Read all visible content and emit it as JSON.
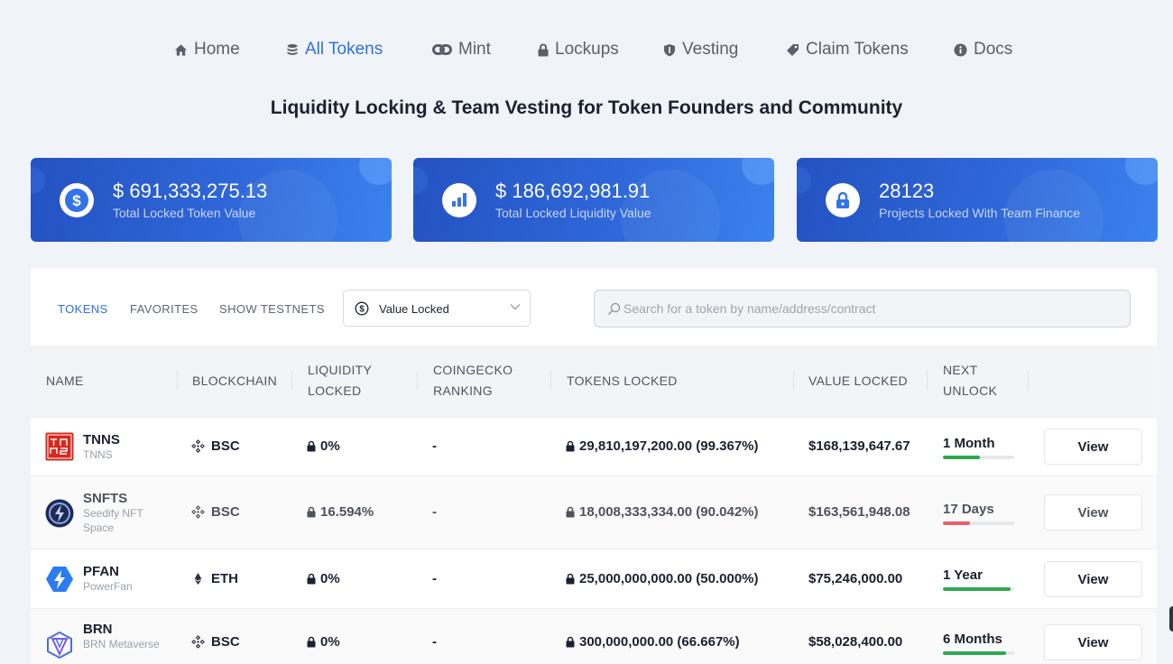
{
  "nav": [
    {
      "label": "Home",
      "icon": "home-icon",
      "active": false
    },
    {
      "label": "All Tokens",
      "icon": "database-icon",
      "active": true
    },
    {
      "label": "Mint",
      "icon": "link-icon",
      "active": false
    },
    {
      "label": "Lockups",
      "icon": "lock-icon",
      "active": false
    },
    {
      "label": "Vesting",
      "icon": "shield-icon",
      "active": false
    },
    {
      "label": "Claim Tokens",
      "icon": "tag-icon",
      "active": false
    },
    {
      "label": "Docs",
      "icon": "info-icon",
      "active": false
    }
  ],
  "tagline": "Liquidity Locking & Team Vesting for Token Founders and Community",
  "stats": [
    {
      "value": "$ 691,333,275.13",
      "label": "Total Locked Token Value",
      "icon": "dollar-circle-icon"
    },
    {
      "value": "$ 186,692,981.91",
      "label": "Total Locked Liquidity Value",
      "icon": "liquidity-chart-icon"
    },
    {
      "value": "28123",
      "label": "Projects Locked With Team Finance",
      "icon": "lock-icon"
    }
  ],
  "tabs": [
    {
      "label": "TOKENS",
      "active": true
    },
    {
      "label": "FAVORITES",
      "active": false
    },
    {
      "label": "SHOW TESTNETS",
      "active": false
    }
  ],
  "sort_select": {
    "value": "Value Locked"
  },
  "search": {
    "placeholder": "Search for a token by name/address/contract",
    "value": ""
  },
  "table": {
    "headers": {
      "name": "NAME",
      "blockchain": "BLOCKCHAIN",
      "liquidity_1": "LIQUIDITY",
      "liquidity_2": "LOCKED",
      "coingecko_1": "COINGECKO",
      "coingecko_2": "RANKING",
      "tokens_locked": "TOKENS LOCKED",
      "value_locked": "VALUE LOCKED",
      "next_unlock_1": "NEXT",
      "next_unlock_2": "UNLOCK"
    },
    "rows": [
      {
        "symbol": "TNNS",
        "name": "TNNS",
        "chain": "BSC",
        "liquidity": "0%",
        "ranking": "-",
        "tokens_locked": "29,810,197,200.00 (99.367%)",
        "value_locked": "$168,139,647.67",
        "next_unlock": "1 Month",
        "unlock_progress": 0.52,
        "bar_color": "#2fa84f",
        "action": "View"
      },
      {
        "symbol": "SNFTS",
        "name": "Seedify NFT Space",
        "chain": "BSC",
        "liquidity": "16.594%",
        "ranking": "-",
        "tokens_locked": "18,008,333,334.00 (90.042%)",
        "value_locked": "$163,561,948.08",
        "next_unlock": "17 Days",
        "unlock_progress": 0.38,
        "bar_color": "#e5606a",
        "action": "View"
      },
      {
        "symbol": "PFAN",
        "name": "PowerFan",
        "chain": "ETH",
        "liquidity": "0%",
        "ranking": "-",
        "tokens_locked": "25,000,000,000.00 (50.000%)",
        "value_locked": "$75,246,000.00",
        "next_unlock": "1 Year",
        "unlock_progress": 0.95,
        "bar_color": "#2fa84f",
        "action": "View"
      },
      {
        "symbol": "BRN",
        "name": "BRN Metaverse",
        "chain": "BSC",
        "liquidity": "0%",
        "ranking": "-",
        "tokens_locked": "300,000,000.00 (66.667%)",
        "value_locked": "$58,028,400.00",
        "next_unlock": "6 Months",
        "unlock_progress": 0.88,
        "bar_color": "#2fa84f",
        "action": "View"
      }
    ]
  }
}
